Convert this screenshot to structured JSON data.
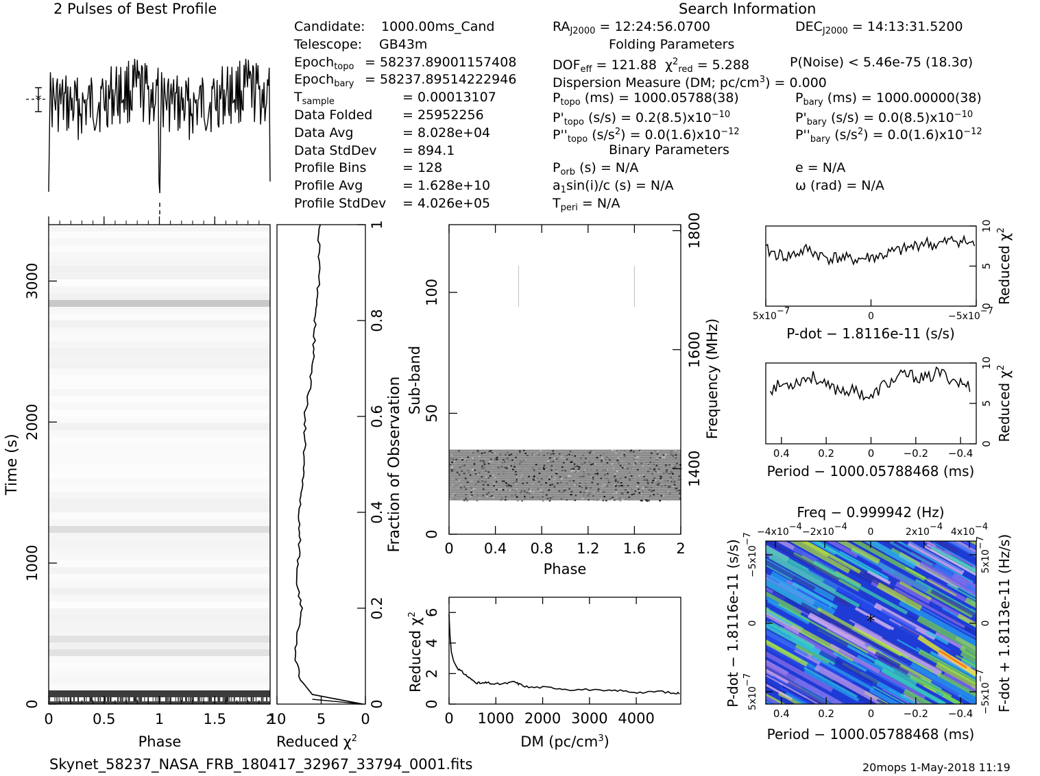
{
  "header": {
    "profile_title": "2 Pulses of Best Profile",
    "search_title": "Search Information",
    "filename": "Skynet_58237_NASA_FRB_180417_32967_33794_0001.fits",
    "footer_right": "20mops   1-May-2018 11:19"
  },
  "info": {
    "col1": [
      {
        "label": "Candidate:",
        "value": "1000.00ms_Cand"
      },
      {
        "label": "Telescope:",
        "value": "GB43m"
      },
      {
        "label": "Epoch",
        "sub": "topo",
        "value": "= 58237.89001157408"
      },
      {
        "label": "Epoch",
        "sub": "bary",
        "value": "= 58237.89514222946"
      },
      {
        "label": "T",
        "sub": "sample",
        "value": "=   0.00013107"
      },
      {
        "label": "Data Folded",
        "value": "=   25952256"
      },
      {
        "label": "Data Avg",
        "value": "=   8.028e+04"
      },
      {
        "label": "Data StdDev",
        "value": "=   894.1"
      },
      {
        "label": "Profile Bins",
        "value": "=   128"
      },
      {
        "label": "Profile Avg",
        "value": "=   1.628e+10"
      },
      {
        "label": "Profile StdDev",
        "value": "=   4.026e+05"
      }
    ],
    "ra": "= 12:24:56.0700",
    "dec": "= 14:13:31.5200",
    "folding_title": "Folding Parameters",
    "dof": "= 121.88",
    "chi2red": "= 5.288",
    "pnoise": "P(Noise) < 5.46e-75   (18.3σ)",
    "dm_line": "Dispersion Measure (DM; pc/cm",
    "dm_value": ") = 0.000",
    "ptopo": "(ms) =   1000.05788(38)",
    "pbary": "(ms) =   1000.00000(38)",
    "pdtopo": "(s/s) =   0.2(8.5)x10",
    "pdtopo_exp": "−10",
    "pdbary": "(s/s) = 0.0(8.5)x10",
    "pdbary_exp": "−10",
    "pddtopo": "(s/s",
    "pddtopo_val": ") = 0.0(1.6)x10",
    "pddtopo_exp": "−12",
    "pddbary": "(s/s",
    "pddbary_val": ") = 0.0(1.6)x10",
    "pddbary_exp": "−12",
    "binary_title": "Binary Parameters",
    "porb": "(s) = N/A",
    "e": "e = N/A",
    "a1": "sin(i)/c (s) = N/A",
    "omega": "ω (rad) = N/A",
    "tperi": "= N/A"
  },
  "chart_data": [
    {
      "type": "line",
      "name": "profile",
      "title": "2 Pulses of Best Profile",
      "x_range": [
        0,
        2
      ],
      "description_series": "two pulses of 128-bin profile; narrow dip near phase 0 and 1"
    },
    {
      "type": "heatmap",
      "name": "time-phase",
      "xlabel": "Phase",
      "ylabel": "Time (s)",
      "x_ticks": [
        "0",
        "0.5",
        "1",
        "1.5"
      ],
      "y_ticks": [
        "0",
        "1000",
        "2000",
        "3000"
      ],
      "xlim": [
        0,
        2
      ],
      "ylim": [
        0,
        3400
      ]
    },
    {
      "type": "line",
      "name": "time-chi2",
      "xlabel": "Reduced χ",
      "ylabel": "Fraction of Observation",
      "x_ticks": [
        "10",
        "5",
        "0"
      ],
      "y_ticks": [
        "0",
        "0.2",
        "0.4",
        "0.6",
        "0.8",
        "1"
      ],
      "xlim": [
        10,
        0
      ],
      "ylim": [
        0,
        1
      ],
      "y": [
        0.0,
        0.02,
        0.05,
        0.1,
        0.15,
        0.2,
        0.25,
        0.3,
        0.35,
        0.4,
        0.45,
        0.5,
        0.55,
        0.6,
        0.65,
        0.7,
        0.75,
        0.8,
        0.85,
        0.9,
        0.95,
        1.0
      ],
      "x": [
        0.3,
        6.0,
        7.3,
        8.0,
        7.6,
        7.2,
        7.8,
        7.6,
        7.4,
        7.5,
        7.1,
        7.0,
        6.8,
        6.9,
        6.4,
        6.0,
        5.8,
        5.7,
        5.4,
        5.2,
        5.3,
        5.1
      ]
    },
    {
      "type": "heatmap",
      "name": "subband-phase",
      "xlabel": "Phase",
      "ylabel": "Sub-band",
      "y2label": "Frequency (MHz)",
      "x_ticks": [
        "0",
        "0.4",
        "0.8",
        "1.2",
        "1.6",
        "2"
      ],
      "y_ticks": [
        "0",
        "50",
        "100"
      ],
      "y2_ticks": [
        "1400",
        "1600",
        "1800"
      ],
      "xlim": [
        0,
        2
      ],
      "ylim": [
        0,
        128
      ],
      "y2lim": [
        1290,
        1810
      ],
      "active_band": [
        14,
        35
      ]
    },
    {
      "type": "line",
      "name": "dm-chi2",
      "xlabel": "DM (pc/cm",
      "ylabel": "Reduced χ",
      "x_ticks": [
        "0",
        "1000",
        "2000",
        "3000",
        "4000"
      ],
      "y_ticks": [
        "0",
        "2",
        "4",
        "6"
      ],
      "xlim": [
        0,
        4950
      ],
      "ylim": [
        0,
        7
      ],
      "x": [
        0,
        20,
        50,
        100,
        150,
        200,
        300,
        400,
        500,
        600,
        700,
        800,
        1000,
        1200,
        1400,
        1500,
        1700,
        2000,
        2300,
        2600,
        3000,
        3300,
        3600,
        3900,
        4200,
        4500,
        4800,
        4950
      ],
      "y": [
        5.9,
        4.5,
        3.4,
        2.8,
        2.5,
        2.3,
        2.05,
        1.8,
        1.55,
        1.4,
        1.35,
        1.4,
        1.3,
        1.35,
        1.45,
        1.3,
        1.1,
        1.1,
        1.05,
        0.95,
        0.95,
        0.85,
        0.9,
        0.8,
        0.75,
        0.85,
        0.7,
        0.72
      ]
    },
    {
      "type": "line",
      "name": "pdot-chi2",
      "xlabel": "P-dot − 1.8116e-11 (s/s)",
      "ylabel": "Reduced χ",
      "x_ticks": [
        "5x10",
        "0",
        "−5x10"
      ],
      "x_tick_exp": "−7",
      "y_ticks": [
        "0",
        "5",
        "10"
      ],
      "ylim": [
        0,
        10
      ],
      "x": [
        5,
        4.5,
        4,
        3.5,
        3,
        2.5,
        2,
        1.5,
        1,
        0.5,
        0,
        -0.5,
        -1,
        -1.5,
        -2,
        -2.5,
        -3,
        -3.5,
        -4,
        -4.5,
        -5
      ],
      "y": [
        7.0,
        6.5,
        6.2,
        6.6,
        7.1,
        6.4,
        6.0,
        6.1,
        5.8,
        5.9,
        6.1,
        6.3,
        6.7,
        7.0,
        7.4,
        8.0,
        7.6,
        7.9,
        8.3,
        8.0,
        7.6
      ]
    },
    {
      "type": "line",
      "name": "period-chi2",
      "xlabel": "Period − 1000.05788468 (ms)",
      "ylabel": "Reduced χ",
      "x_ticks": [
        "0.4",
        "0.2",
        "0",
        "−0.2",
        "−0.4"
      ],
      "y_ticks": [
        "0",
        "5",
        "10"
      ],
      "ylim": [
        0,
        10
      ],
      "x": [
        0.45,
        0.4,
        0.35,
        0.3,
        0.25,
        0.2,
        0.15,
        0.1,
        0.05,
        0,
        -0.05,
        -0.1,
        -0.15,
        -0.2,
        -0.25,
        -0.3,
        -0.35,
        -0.4,
        -0.45
      ],
      "y": [
        6.8,
        7.3,
        7.5,
        8.1,
        8.3,
        7.0,
        6.8,
        6.6,
        6.4,
        5.6,
        7.2,
        7.8,
        8.6,
        8.3,
        8.0,
        8.9,
        8.2,
        7.5,
        7.0
      ]
    },
    {
      "type": "heatmap",
      "name": "p-pdot",
      "title": "Freq − 0.999942 (Hz)",
      "xlabel": "Period − 1000.05788468 (ms)",
      "ylabel": "P-dot − 1.8116e-11 (s/s)",
      "y2label": "F-dot + 1.8113e-11 (Hz/s)",
      "x_ticks": [
        "0.4",
        "0.2",
        "0",
        "−0.2",
        "−0.4"
      ],
      "top_ticks": [
        "−4x10",
        "−2x10",
        "0",
        "2x10",
        "4x10"
      ],
      "top_tick_exp": "−4",
      "y_ticks": [
        "−5x10",
        "0",
        "5x10"
      ],
      "y_tick_exp": "−7",
      "y2_ticks": [
        "5x10",
        "0",
        "−5x10"
      ],
      "y2_tick_exp": "−7"
    }
  ]
}
